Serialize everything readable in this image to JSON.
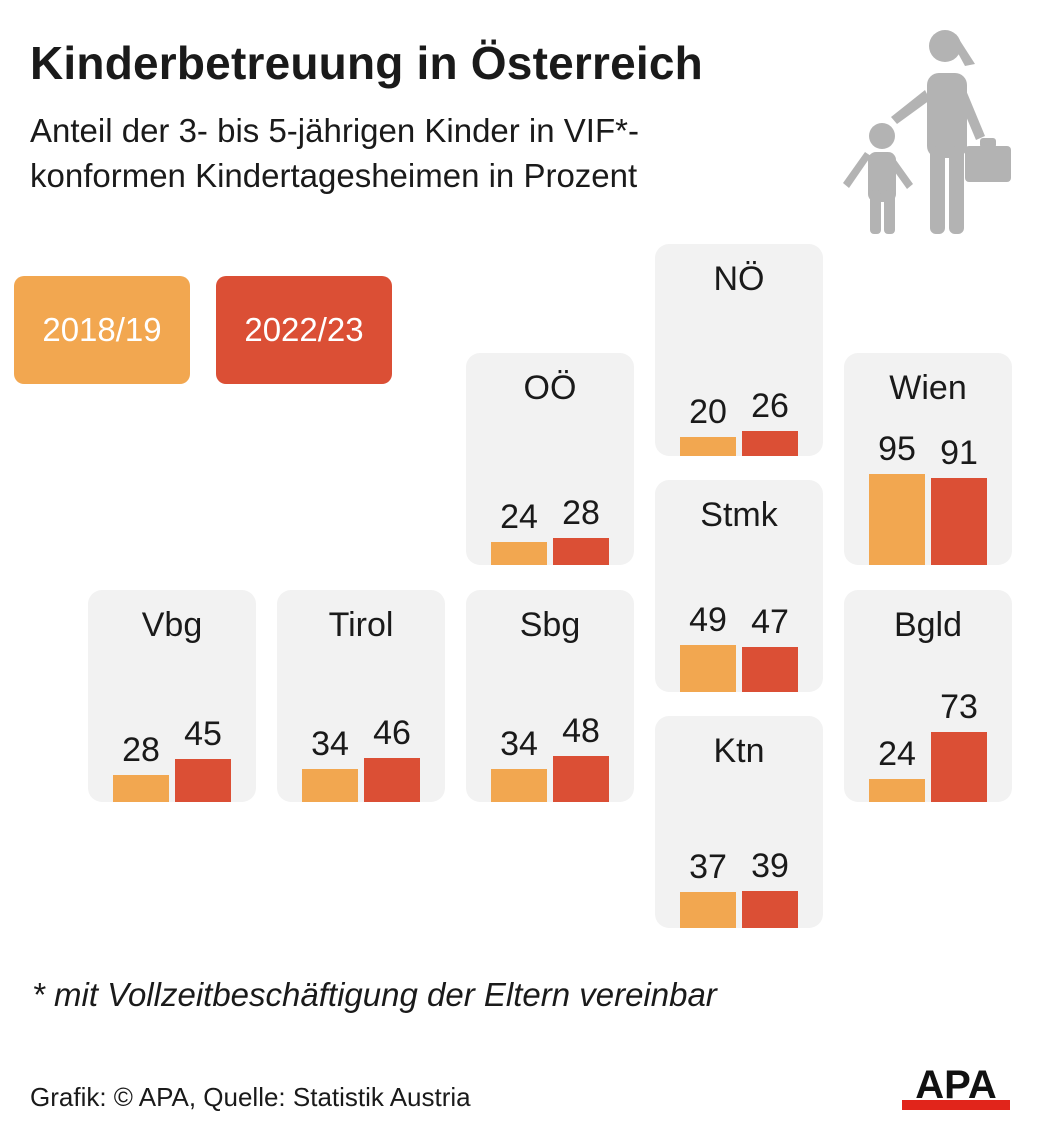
{
  "header": {
    "title": "Kinderbetreuung in Österreich",
    "subtitle": "Anteil der 3- bis 5-jährigen Kinder in VIF*-konformen Kindertagesheimen in Prozent"
  },
  "legend": {
    "series_a": "2018/19",
    "series_b": "2022/23"
  },
  "colors": {
    "series_a": "#f2a750",
    "series_b": "#db4f35",
    "tile": "#f2f2f2",
    "icon": "#b3b3b3",
    "logo_red": "#e1251b"
  },
  "chart_data": {
    "type": "bar",
    "title": "Kinderbetreuung in Österreich",
    "subtitle": "Anteil der 3- bis 5-jährigen Kinder in VIF*-konformen Kindertagesheimen in Prozent",
    "unit": "%",
    "ylim": [
      0,
      100
    ],
    "series_names": [
      "2018/19",
      "2022/23"
    ],
    "regions": [
      {
        "name": "NÖ",
        "values": [
          20,
          26
        ]
      },
      {
        "name": "OÖ",
        "values": [
          24,
          28
        ]
      },
      {
        "name": "Wien",
        "values": [
          95,
          91
        ]
      },
      {
        "name": "Stmk",
        "values": [
          49,
          47
        ]
      },
      {
        "name": "Vbg",
        "values": [
          28,
          45
        ]
      },
      {
        "name": "Tirol",
        "values": [
          34,
          46
        ]
      },
      {
        "name": "Sbg",
        "values": [
          34,
          48
        ]
      },
      {
        "name": "Bgld",
        "values": [
          24,
          73
        ]
      },
      {
        "name": "Ktn",
        "values": [
          37,
          39
        ]
      }
    ]
  },
  "footnote": "* mit Vollzeitbeschäftigung der Eltern vereinbar",
  "source": "Grafik: © APA, Quelle: Statistik Austria",
  "logo": {
    "text": "APA",
    "icon": "apa-logo-icon"
  },
  "pictogram": {
    "icon": "parent-child-icon"
  }
}
